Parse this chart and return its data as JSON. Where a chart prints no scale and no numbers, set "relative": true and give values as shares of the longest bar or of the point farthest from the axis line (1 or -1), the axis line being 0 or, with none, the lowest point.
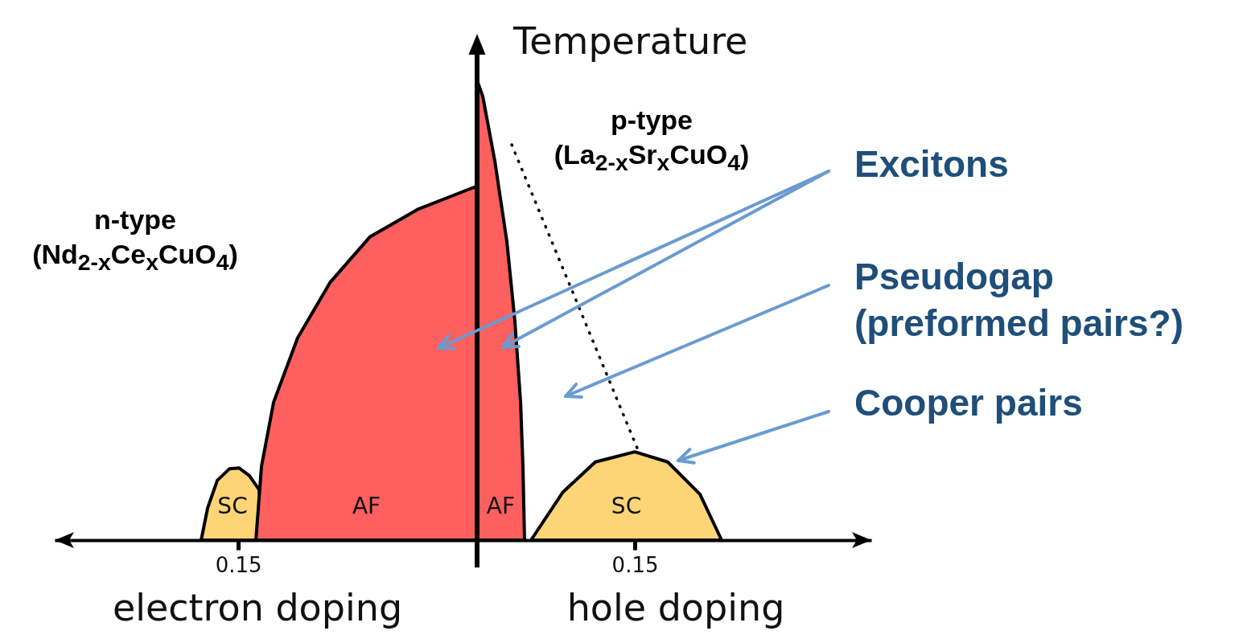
{
  "chart_data": {
    "type": "area",
    "relative": true,
    "ylabel": "Temperature",
    "xlim": [
      -0.2888,
      0.3289
    ],
    "xticks": [
      {
        "value": -0.15,
        "label": "0.15"
      },
      {
        "value": 0.15,
        "label": "0.15"
      }
    ],
    "line_style": "dotted",
    "ref_lines": [
      {
        "axis": "x",
        "value": 0.0307
      }
    ],
    "series": [
      {
        "name": "SC",
        "color": "#fdd576",
        "x": [
          -0.178,
          -0.1731,
          -0.1658,
          -0.1567,
          -0.1494,
          -0.1415,
          -0.1342,
          -0.1306
        ],
        "values": [
          0,
          0.07,
          0.13,
          0.155,
          0.157,
          0.14,
          0.11,
          0
        ]
      },
      {
        "name": "AF",
        "color": "#fe5f5f",
        "x": [
          -0.1366,
          -0.1324,
          -0.1232,
          -0.105,
          -0.0806,
          -0.0502,
          -0.0137,
          0.0307
        ],
        "values": [
          0,
          0.16,
          0.3,
          0.44,
          0.56,
          0.66,
          0.72,
          0.77
        ]
      },
      {
        "name": "AF",
        "color": "#fe5f5f",
        "x": [
          0.0307,
          0.035,
          0.0441,
          0.0532,
          0.0593,
          0.0636,
          0.0654,
          0.0666
        ],
        "values": [
          1,
          0.965,
          0.825,
          0.65,
          0.476,
          0.3,
          0.16,
          0
        ]
      },
      {
        "name": "SC",
        "color": "#fdd576",
        "x": [
          0.0715,
          0.0958,
          0.1202,
          0.15,
          0.1749,
          0.1993,
          0.2157
        ],
        "values": [
          0,
          0.105,
          0.17,
          0.192,
          0.17,
          0.1,
          0
        ]
      },
      {
        "type": "line",
        "color": "#000000",
        "x": [
          0.0569,
          0.1524
        ],
        "values": [
          0.86,
          0.196
        ]
      }
    ],
    "annotations": [
      "n-type (Nd$_{2-x}$Ce$_{x}$CuO$_{4}$)",
      "p-type (La$_{2-x}$Sr$_{x}$CuO$_{4}$)",
      "Excitons",
      "Pseudogap (preformed pairs?)",
      "Cooper pairs",
      "electron doping",
      "hole doping"
    ]
  }
}
